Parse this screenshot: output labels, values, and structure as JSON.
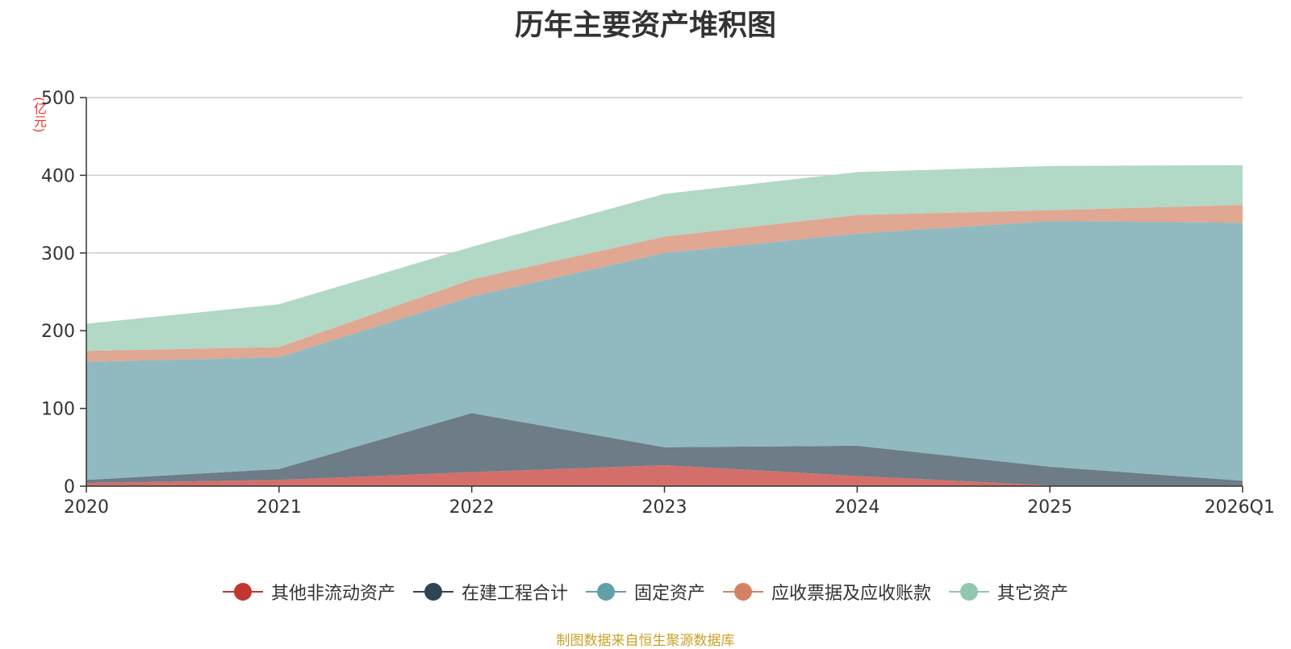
{
  "chart_data": {
    "type": "area",
    "stacked": true,
    "title": "历年主要资产堆积图",
    "ylabel": "(亿元)",
    "xlabel": "",
    "ylim": [
      0,
      500
    ],
    "yticks": [
      0,
      100,
      200,
      300,
      400,
      500
    ],
    "categories": [
      "2020",
      "2021",
      "2022",
      "2023",
      "2024",
      "2025",
      "2026Q1"
    ],
    "series": [
      {
        "name": "其他非流动资产",
        "color": "#c23531",
        "area_color": "#d46e6a",
        "values": [
          4,
          8,
          18,
          27,
          13,
          1,
          1
        ]
      },
      {
        "name": "在建工程合计",
        "color": "#2f4554",
        "area_color": "#6d7c87",
        "values": [
          4,
          14,
          76,
          23,
          39,
          24,
          6
        ]
      },
      {
        "name": "固定资产",
        "color": "#61a0a8",
        "area_color": "#90bac0",
        "values": [
          152,
          144,
          150,
          250,
          273,
          316,
          332
        ]
      },
      {
        "name": "应收票据及应收账款",
        "color": "#d48265",
        "area_color": "#e0a792",
        "values": [
          14,
          13,
          22,
          21,
          24,
          14,
          23
        ]
      },
      {
        "name": "其它资产",
        "color": "#91c7ae",
        "area_color": "#b2d8c6",
        "values": [
          35,
          55,
          42,
          55,
          55,
          57,
          51
        ]
      }
    ],
    "legend_position": "bottom",
    "grid": true
  },
  "source_text": "制图数据来自恒生聚源数据库"
}
